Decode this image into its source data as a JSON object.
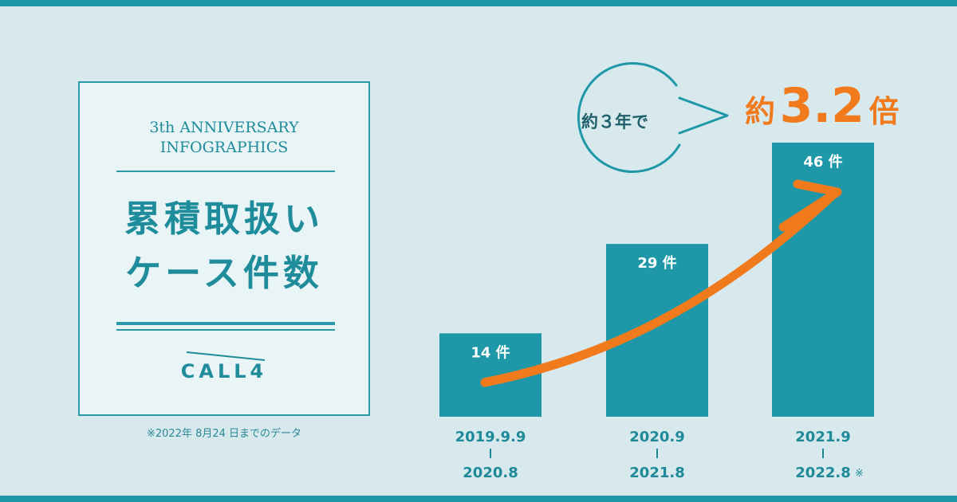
{
  "card": {
    "title_line1": "3th ANNIVERSARY",
    "title_line2": "INFOGRAPHICS",
    "heading_line1": "累積取扱い",
    "heading_line2": "ケース件数",
    "logo": "CALL4"
  },
  "note": "※2022年 8月24 日までのデータ",
  "callout": {
    "bubble": "約３年で",
    "prefix": "約",
    "value": "3.2",
    "suffix": "倍"
  },
  "colors": {
    "bar": "#1e98a8",
    "accent": "#f07a1c",
    "text": "#1f8c9b",
    "background": "#d8e9ee"
  },
  "chart_data": {
    "type": "bar",
    "categories": [
      {
        "start": "2019.9.9",
        "end": "2020.8",
        "note": ""
      },
      {
        "start": "2020.9",
        "end": "2021.8",
        "note": ""
      },
      {
        "start": "2021.9",
        "end": "2022.8",
        "note": "※"
      }
    ],
    "values": [
      14,
      29,
      46
    ],
    "value_labels": [
      "14 件",
      "29 件",
      "46 件"
    ],
    "ylim": [
      0,
      46
    ],
    "grid": false,
    "legend": "none",
    "trend_arrow": true
  }
}
